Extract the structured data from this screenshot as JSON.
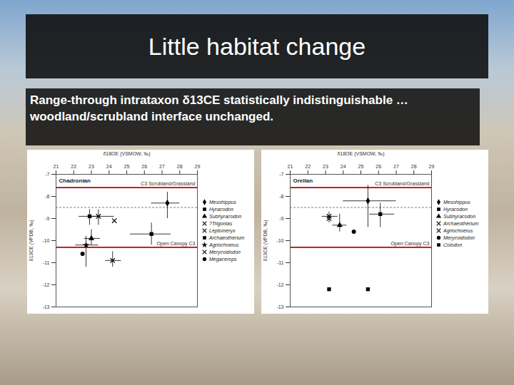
{
  "slide": {
    "title": "Little habitat change",
    "subtitle": "Range-through intrataxon δ13CE statistically indistinguishable … woodland/scrubland interface unchanged."
  },
  "chart_data": [
    {
      "type": "scatter",
      "title": "Chadronian",
      "x_label": "δ18OE (VSMOW, ‰)",
      "y_label": "δ13CE (VPDB, ‰)",
      "xlim": [
        21,
        29
      ],
      "xticks": [
        21,
        22,
        23,
        24,
        25,
        26,
        27,
        28,
        29
      ],
      "ylim": [
        -13,
        -7
      ],
      "yticks": [
        -7,
        -8,
        -9,
        -10,
        -11,
        -12,
        -13
      ],
      "legend": "right",
      "reference_lines": [
        {
          "value": -7.6,
          "label": "C3 Scrubland/Grassland",
          "color": "#c00000"
        },
        {
          "value": -8.5,
          "color": "#808080",
          "line_style": "dashed"
        },
        {
          "value": -10.3,
          "label": "Open Canopy C3",
          "color": "#c00000"
        }
      ],
      "series": [
        {
          "name": "Mesohippus",
          "marker": "diamond",
          "color": "#000000",
          "x": [
            27.3
          ],
          "y": [
            -8.3
          ],
          "x_range": [
            [
              26.4,
              28.0
            ]
          ],
          "y_range": [
            [
              -9.0,
              -7.8
            ]
          ]
        },
        {
          "name": "Hyracodon",
          "marker": "square",
          "color": "#000000",
          "x": [
            22.9
          ],
          "y": [
            -8.9
          ],
          "x_range": [
            [
              22.3,
              23.5
            ]
          ],
          "y_range": [
            [
              -9.3,
              -8.6
            ]
          ]
        },
        {
          "name": "Subhyracodon",
          "marker": "triangle",
          "color": "#000000",
          "x": [
            23.0
          ],
          "y": [
            -9.9
          ],
          "x_range": [
            [
              22.6,
              23.5
            ]
          ],
          "y_range": [
            [
              -10.2,
              -9.5
            ]
          ]
        },
        {
          "name": "?Trigonias",
          "marker": "times",
          "color": "#000000",
          "x": [
            23.4
          ],
          "y": [
            -8.9
          ],
          "x_range": [
            [
              22.9,
              24.3
            ]
          ],
          "y_range": [
            [
              -9.3,
              -8.6
            ]
          ]
        },
        {
          "name": "Leptomeryx",
          "marker": "times",
          "color": "#000000",
          "x": [
            24.3
          ],
          "y": [
            -9.1
          ],
          "x_range": [
            null
          ],
          "y_range": [
            null
          ]
        },
        {
          "name": "Archaeotherium",
          "marker": "square",
          "color": "#000000",
          "x": [
            26.4
          ],
          "y": [
            -9.7
          ],
          "x_range": [
            [
              25.2,
              27.5
            ]
          ],
          "y_range": [
            [
              -10.2,
              -9.2
            ]
          ]
        },
        {
          "name": "Agriochoerus",
          "marker": "star",
          "color": "#000000",
          "x": [
            22.7
          ],
          "y": [
            -10.2
          ],
          "x_range": [
            [
              22.1,
              23.4
            ]
          ],
          "y_range": [
            [
              -11.2,
              -9.8
            ]
          ]
        },
        {
          "name": "Merycoidodon",
          "marker": "times",
          "color": "#000000",
          "x": [
            24.2
          ],
          "y": [
            -10.9
          ],
          "x_range": [
            [
              23.8,
              24.7
            ]
          ],
          "y_range": [
            [
              -11.2,
              -10.5
            ]
          ]
        },
        {
          "name": "Megacerops",
          "marker": "circle",
          "color": "#000000",
          "x": [
            22.5
          ],
          "y": [
            -10.6
          ],
          "x_range": [
            null
          ],
          "y_range": [
            null
          ]
        }
      ]
    },
    {
      "type": "scatter",
      "title": "Orellan",
      "x_label": "δ18OE (VSMOW, ‰)",
      "y_label": "δ13CE (VPDB, ‰)",
      "xlim": [
        21,
        29
      ],
      "xticks": [
        21,
        22,
        23,
        24,
        25,
        26,
        27,
        28,
        29
      ],
      "ylim": [
        -13,
        -7
      ],
      "yticks": [
        -7,
        -8,
        -9,
        -10,
        -11,
        -12,
        -13
      ],
      "legend": "right",
      "reference_lines": [
        {
          "value": -7.6,
          "label": "C3 Scrubland/Grassland",
          "color": "#c00000"
        },
        {
          "value": -8.5,
          "color": "#808080",
          "line_style": "dashed"
        },
        {
          "value": -10.3,
          "label": "Open Canopy C3",
          "color": "#c00000"
        }
      ],
      "series": [
        {
          "name": "Mesohippus",
          "marker": "diamond",
          "color": "#000000",
          "x": [
            25.4
          ],
          "y": [
            -8.2
          ],
          "x_range": [
            [
              24.0,
              27.0
            ]
          ],
          "y_range": [
            [
              -9.4,
              -7.5
            ]
          ]
        },
        {
          "name": "Hyracodon",
          "marker": "square",
          "color": "#000000",
          "x": [
            26.1
          ],
          "y": [
            -8.8
          ],
          "x_range": [
            [
              25.5,
              26.9
            ]
          ],
          "y_range": [
            [
              -9.4,
              -8.3
            ]
          ]
        },
        {
          "name": "Subhyracodon",
          "marker": "triangle",
          "color": "#000000",
          "x": [
            23.8
          ],
          "y": [
            -9.3
          ],
          "x_range": [
            [
              23.4,
              24.2
            ]
          ],
          "y_range": [
            [
              -9.6,
              -8.8
            ]
          ]
        },
        {
          "name": "Archaeotherium",
          "marker": "times",
          "color": "#000000",
          "x": [
            23.2
          ],
          "y": [
            -8.9
          ],
          "x_range": [
            [
              22.8,
              23.7
            ]
          ],
          "y_range": [
            [
              -9.2,
              -8.7
            ]
          ]
        },
        {
          "name": "Agriochoerus",
          "marker": "times",
          "color": "#000000",
          "x": [
            23.2
          ],
          "y": [
            -9.0
          ],
          "x_range": [
            null
          ],
          "y_range": [
            null
          ]
        },
        {
          "name": "Merycoidodon",
          "marker": "circle",
          "color": "#000000",
          "x": [
            24.6
          ],
          "y": [
            -9.6
          ],
          "x_range": [
            null
          ],
          "y_range": [
            null
          ]
        },
        {
          "name": "Colodon",
          "marker": "square",
          "color": "#000000",
          "x": [
            23.2,
            25.4
          ],
          "y": [
            -12.2,
            -12.2
          ],
          "x_range": [
            null,
            null
          ],
          "y_range": [
            null,
            null
          ]
        }
      ]
    }
  ]
}
